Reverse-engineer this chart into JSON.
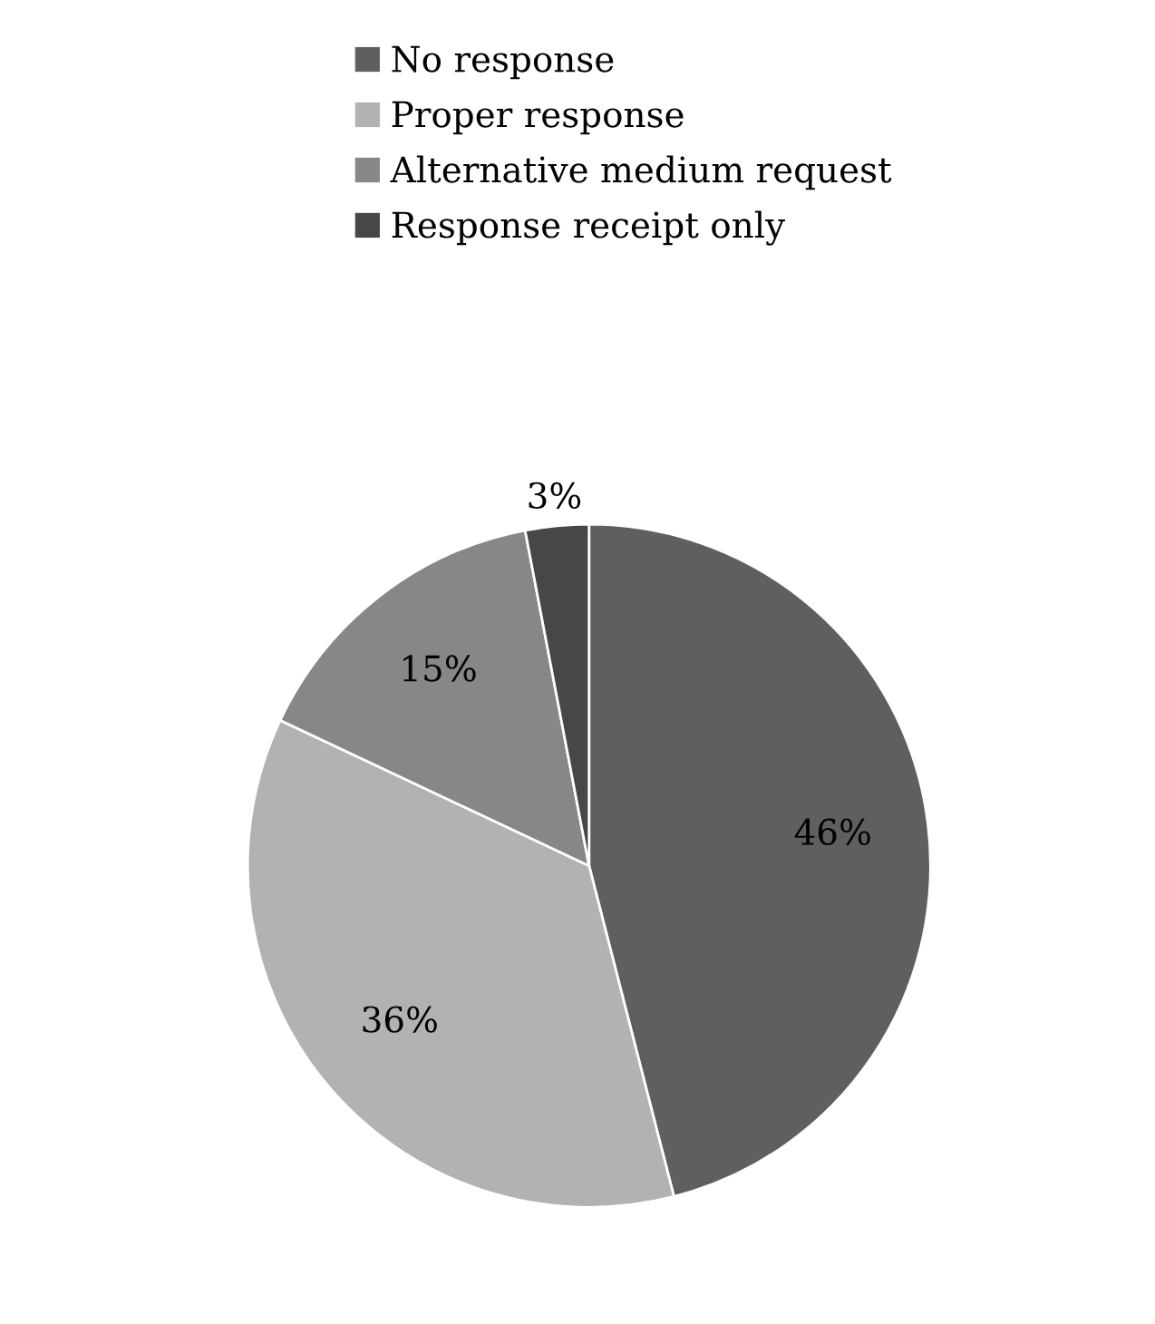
{
  "chart_data": {
    "type": "pie",
    "categories": [
      "No response",
      "Proper response",
      "Alternative medium request",
      "Response receipt only"
    ],
    "values": [
      46,
      36,
      15,
      3
    ],
    "colors": [
      "#5f5f5f",
      "#b2b2b2",
      "#878787",
      "#474747"
    ],
    "value_labels": [
      "46%",
      "36%",
      "15%",
      "3%"
    ],
    "legend": "top"
  }
}
